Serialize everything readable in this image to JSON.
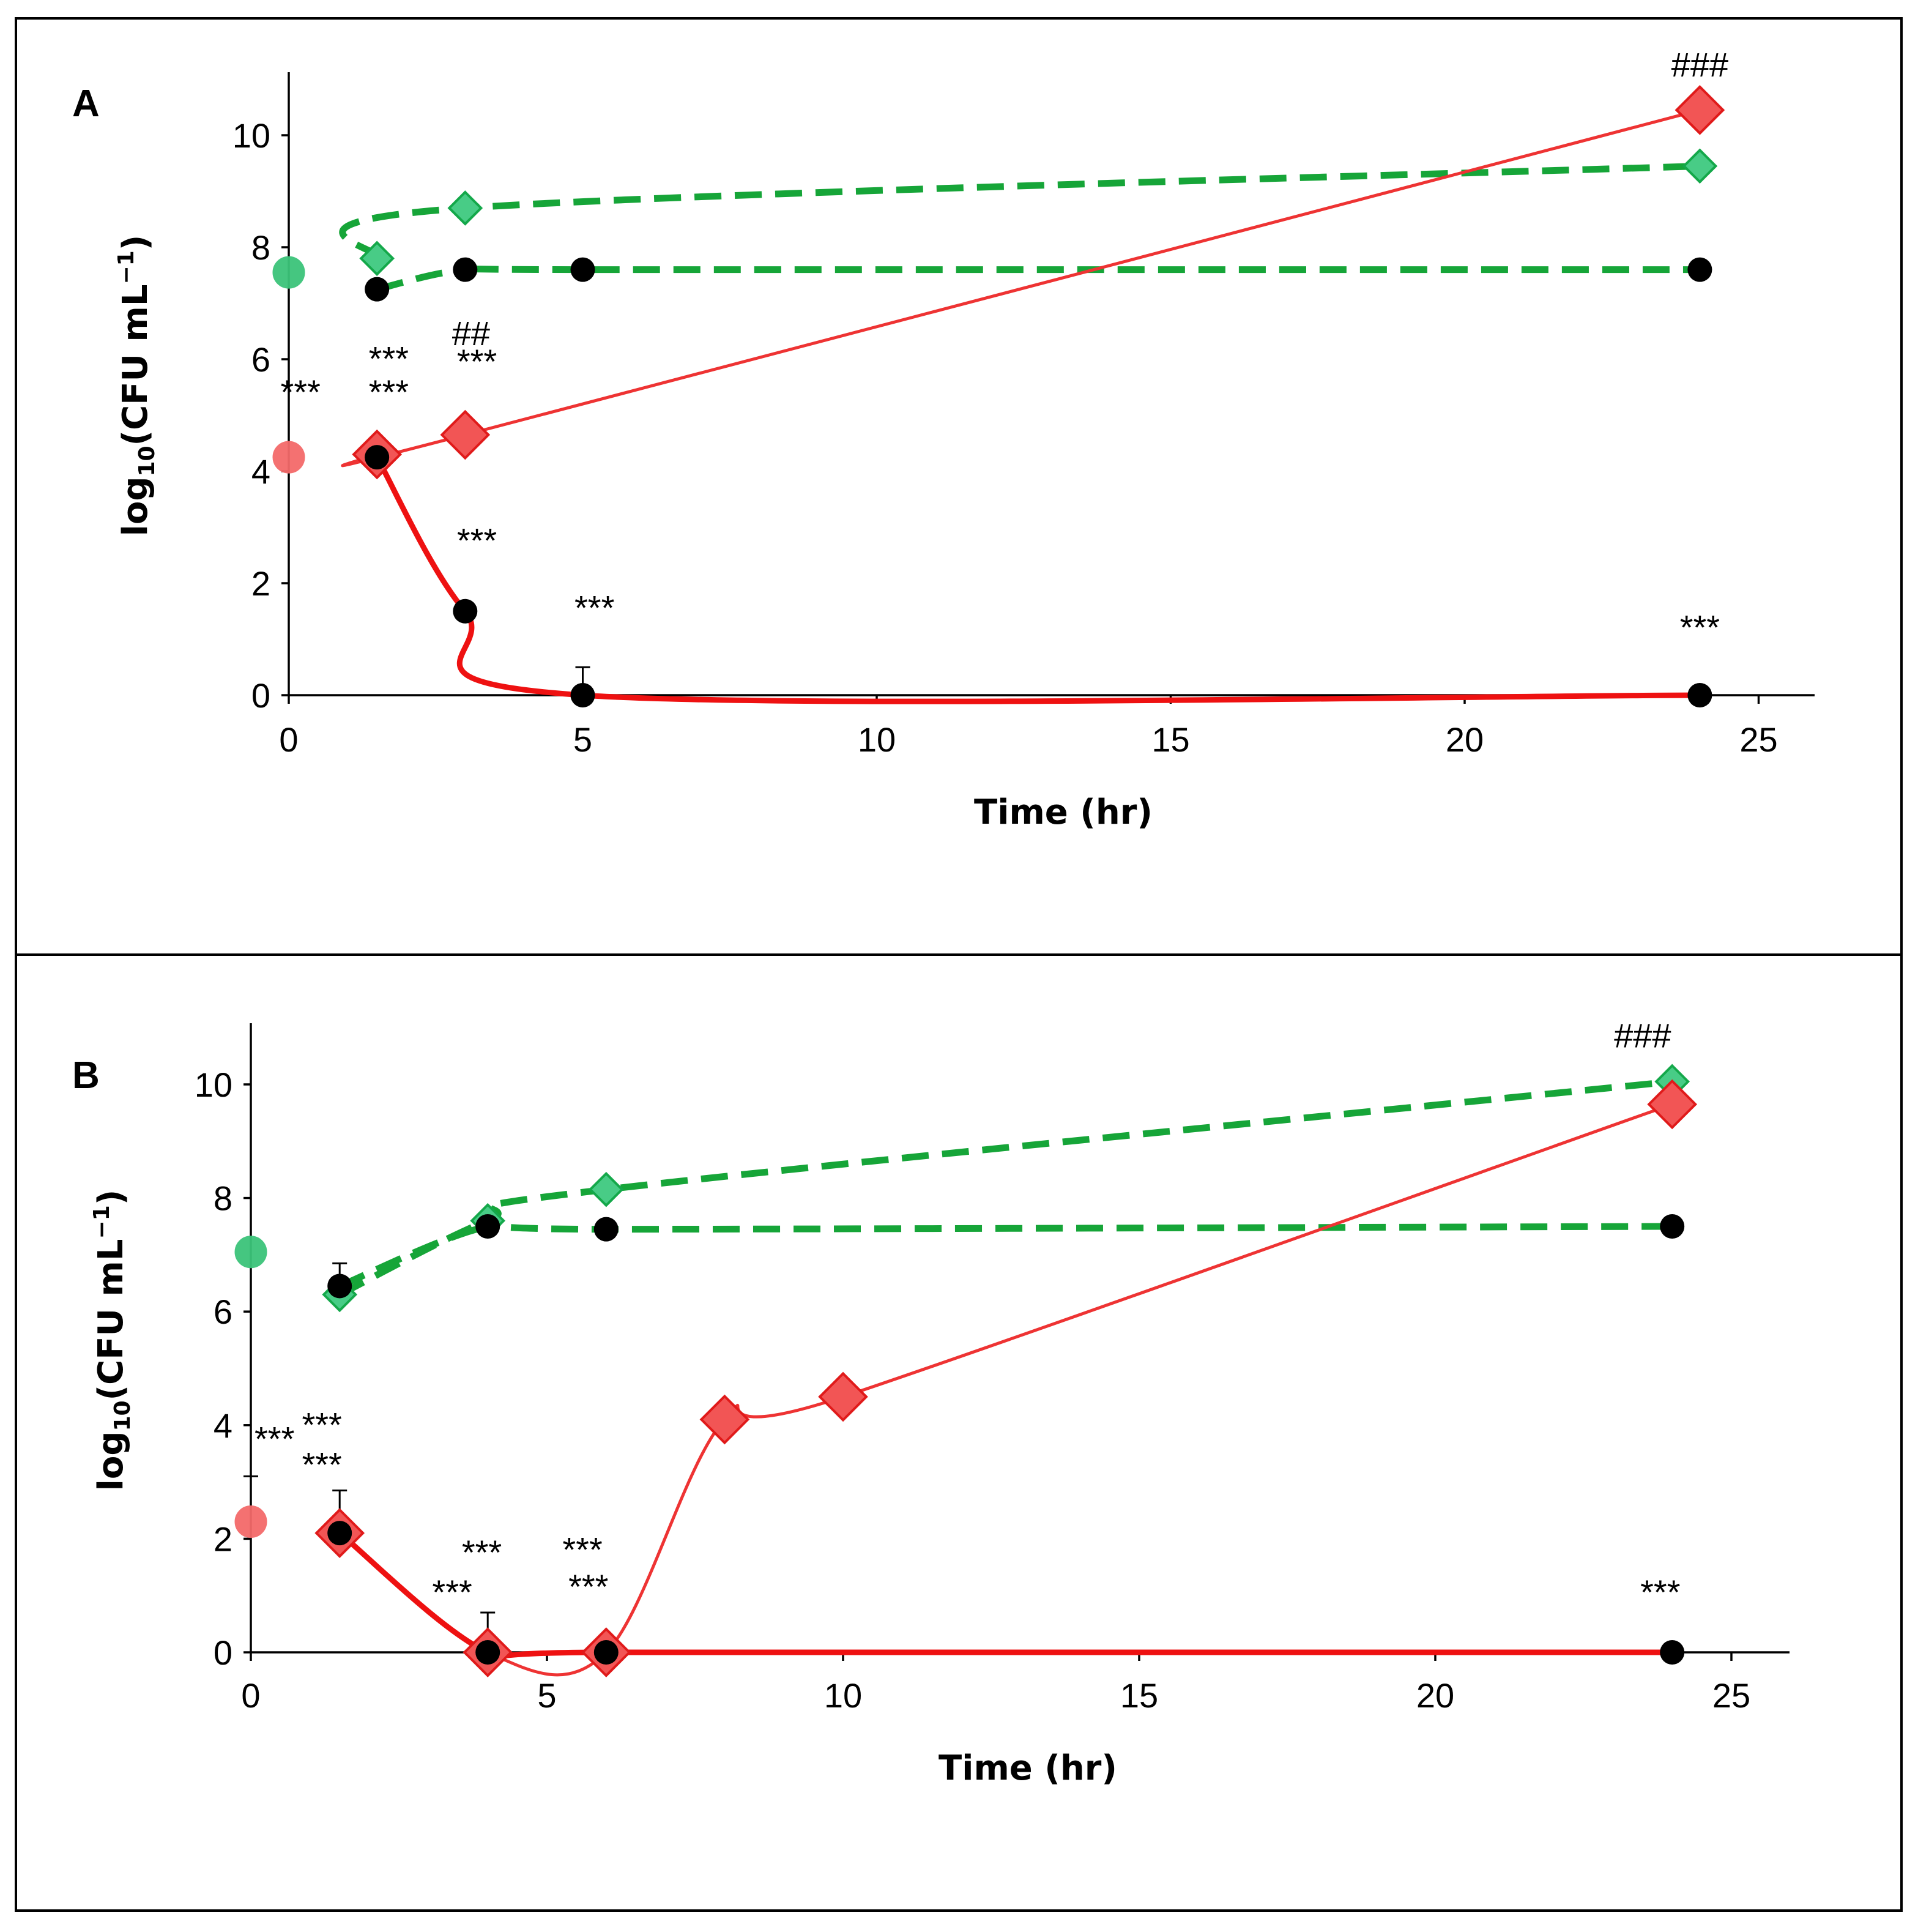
{
  "chart_data": [
    {
      "type": "line",
      "panel_label": "A",
      "xlabel": "Time (hr)",
      "ylabel": "log10(CFU mL−1)",
      "ylabel_parts": {
        "prefix": "log",
        "sub": "10",
        "mid": "(CFU mL",
        "sup": "−1",
        "suffix": ")"
      },
      "xlim": [
        0,
        26
      ],
      "ylim": [
        0,
        11
      ],
      "xticks": [
        0,
        5,
        10,
        15,
        20,
        25
      ],
      "yticks": [
        0,
        2,
        4,
        6,
        8,
        10
      ],
      "series": [
        {
          "name": "green-control-diamond",
          "style": "green-dashed",
          "marker": "diamond",
          "x": [
            1.5,
            3,
            24
          ],
          "y": [
            7.8,
            8.7,
            9.45
          ]
        },
        {
          "name": "green-treated-circle",
          "style": "green-dashed",
          "marker": "black-circle",
          "x": [
            1.5,
            3,
            5,
            24
          ],
          "y": [
            7.25,
            7.6,
            7.6,
            7.6
          ]
        },
        {
          "name": "red-control-diamond",
          "style": "red-thin",
          "marker": "diamond",
          "x": [
            1.5,
            3,
            24
          ],
          "y": [
            4.3,
            4.65,
            10.45
          ]
        },
        {
          "name": "red-treated-circle",
          "style": "red-solid",
          "marker": "black-circle",
          "x": [
            1.5,
            3,
            5,
            24
          ],
          "y": [
            4.25,
            1.5,
            0,
            0
          ]
        }
      ],
      "initial_points": [
        {
          "name": "green-initial",
          "color": "#3cc47a",
          "x": 0,
          "y": 7.55
        },
        {
          "name": "red-initial",
          "color": "#f46a6a",
          "x": 0,
          "y": 4.25
        }
      ],
      "error_bars": [
        {
          "x": 5,
          "y": 0,
          "high": 0.5
        }
      ],
      "annotations": [
        {
          "text": "***",
          "x": 0.2,
          "y": 5.2
        },
        {
          "text": "***",
          "x": 1.7,
          "y": 5.8
        },
        {
          "text": "***",
          "x": 1.7,
          "y": 5.2
        },
        {
          "text": "##",
          "x": 3.1,
          "y": 6.25
        },
        {
          "text": "***",
          "x": 3.2,
          "y": 5.75
        },
        {
          "text": "***",
          "x": 3.2,
          "y": 2.55
        },
        {
          "text": "***",
          "x": 5.2,
          "y": 1.35
        },
        {
          "text": "***",
          "x": 24.0,
          "y": 1.0
        },
        {
          "text": "###",
          "x": 24.0,
          "y": 11.05
        }
      ]
    },
    {
      "type": "line",
      "panel_label": "B",
      "xlabel": "Time (hr)",
      "ylabel": "log10(CFU mL−1)",
      "ylabel_parts": {
        "prefix": "log",
        "sub": "10",
        "mid": "(CFU mL",
        "sup": "−1",
        "suffix": ")"
      },
      "xlim": [
        0,
        26
      ],
      "ylim": [
        0,
        11
      ],
      "xticks": [
        0,
        5,
        10,
        15,
        20,
        25
      ],
      "yticks": [
        0,
        2,
        4,
        6,
        8,
        10
      ],
      "series": [
        {
          "name": "green-control-diamond",
          "style": "green-dashed",
          "marker": "diamond",
          "x": [
            1.5,
            4,
            6,
            24
          ],
          "y": [
            6.3,
            7.6,
            8.15,
            10.05
          ]
        },
        {
          "name": "green-treated-circle",
          "style": "green-dashed",
          "marker": "black-circle",
          "x": [
            1.5,
            4,
            6,
            24
          ],
          "y": [
            6.45,
            7.5,
            7.45,
            7.5
          ]
        },
        {
          "name": "red-control-diamond",
          "style": "red-thin",
          "marker": "diamond",
          "x": [
            1.5,
            4,
            6,
            8,
            10,
            24
          ],
          "y": [
            2.1,
            0,
            0,
            4.1,
            4.5,
            9.65
          ]
        },
        {
          "name": "red-treated-circle",
          "style": "red-solid",
          "marker": "black-circle",
          "x": [
            1.5,
            4,
            6,
            24
          ],
          "y": [
            2.1,
            0,
            0,
            0
          ]
        }
      ],
      "initial_points": [
        {
          "name": "green-initial",
          "color": "#3cc47a",
          "x": 0,
          "y": 7.05
        },
        {
          "name": "red-initial",
          "color": "#f46a6a",
          "x": 0,
          "y": 2.3
        }
      ],
      "error_bars": [
        {
          "x": 1.5,
          "y": 6.45,
          "high": 0.4
        },
        {
          "x": 1.5,
          "y": 2.1,
          "high": 0.75
        },
        {
          "x": 4,
          "y": 0,
          "high": 0.7
        },
        {
          "x": 0,
          "y": 2.3,
          "high": 0.8
        }
      ],
      "annotations": [
        {
          "text": "***",
          "x": 0.4,
          "y": 3.55
        },
        {
          "text": "***",
          "x": 1.2,
          "y": 3.8
        },
        {
          "text": "***",
          "x": 1.2,
          "y": 3.1
        },
        {
          "text": "***",
          "x": 3.9,
          "y": 1.55
        },
        {
          "text": "***",
          "x": 3.4,
          "y": 0.85
        },
        {
          "text": "***",
          "x": 5.6,
          "y": 1.6
        },
        {
          "text": "***",
          "x": 5.7,
          "y": 0.95
        },
        {
          "text": "***",
          "x": 23.8,
          "y": 0.85
        },
        {
          "text": "###",
          "x": 23.5,
          "y": 10.65
        }
      ]
    }
  ]
}
